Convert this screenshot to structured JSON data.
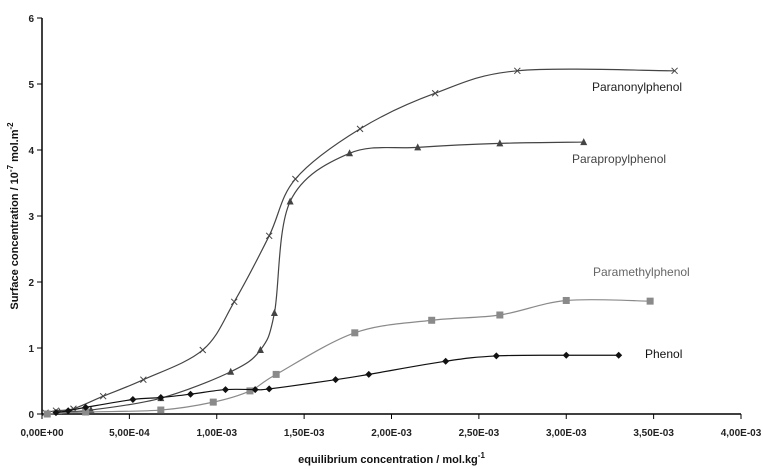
{
  "chart_data": {
    "type": "line",
    "title": "",
    "xlabel": "equilibrium concentration / mol.kg",
    "xlabel_sup": "-1",
    "ylabel": "Surface concentration / 10",
    "ylabel_sup": "-7",
    "ylabel_suffix": " mol.m",
    "ylabel_suffix_sup": "-2",
    "xlim": [
      0,
      0.004
    ],
    "ylim": [
      0,
      6
    ],
    "grid": false,
    "legend": "inline labels",
    "x_ticks": [
      0,
      0.0005,
      0.001,
      0.0015,
      0.002,
      0.0025,
      0.003,
      0.0035,
      0.004
    ],
    "x_tick_labels": [
      "0,00E+00",
      "5,00E-04",
      "1,00E-03",
      "1,50E-03",
      "2,00E-03",
      "2,50E-03",
      "3,00E-03",
      "3,50E-03",
      "4,00E-03"
    ],
    "y_ticks": [
      0,
      1,
      2,
      3,
      4,
      5,
      6
    ],
    "y_tick_labels": [
      "0",
      "1",
      "2",
      "3",
      "4",
      "5",
      "6"
    ],
    "series": [
      {
        "name": "Paranonylphenol",
        "marker": "x",
        "color": "#444444",
        "label_color": "#222222",
        "x": [
          2e-05,
          8e-05,
          0.00018,
          0.00035,
          0.00058,
          0.00092,
          0.0011,
          0.0013,
          0.00145,
          0.00182,
          0.00225,
          0.00272,
          0.00362
        ],
        "y": [
          0.02,
          0.05,
          0.08,
          0.27,
          0.52,
          0.97,
          1.7,
          2.7,
          3.56,
          4.32,
          4.86,
          5.2,
          5.2
        ]
      },
      {
        "name": "Parapropylphenol",
        "marker": "triangle",
        "color": "#444444",
        "label_color": "#444444",
        "x": [
          0.0001,
          0.00028,
          0.00068,
          0.00108,
          0.00125,
          0.00133,
          0.00142,
          0.00176,
          0.00215,
          0.00262,
          0.0031
        ],
        "y": [
          0.03,
          0.06,
          0.24,
          0.64,
          0.97,
          1.53,
          3.22,
          3.95,
          4.04,
          4.1,
          4.12
        ]
      },
      {
        "name": "Paramethylphenol",
        "marker": "square",
        "color": "#8a8a8a",
        "label_color": "#666666",
        "x": [
          3e-05,
          0.00025,
          0.00068,
          0.00098,
          0.00119,
          0.00134,
          0.00179,
          0.00223,
          0.00262,
          0.003,
          0.00348
        ],
        "y": [
          0.0,
          0.03,
          0.06,
          0.18,
          0.35,
          0.6,
          1.23,
          1.42,
          1.5,
          1.72,
          1.71
        ]
      },
      {
        "name": "Phenol",
        "marker": "diamond",
        "color": "#111111",
        "label_color": "#111111",
        "x": [
          8e-05,
          0.00015,
          0.00025,
          0.00052,
          0.00068,
          0.00085,
          0.00105,
          0.00122,
          0.0013,
          0.00168,
          0.00187,
          0.00231,
          0.0026,
          0.003,
          0.0033
        ],
        "y": [
          0.02,
          0.05,
          0.1,
          0.22,
          0.25,
          0.3,
          0.37,
          0.37,
          0.38,
          0.52,
          0.6,
          0.8,
          0.88,
          0.89,
          0.89
        ]
      }
    ]
  }
}
